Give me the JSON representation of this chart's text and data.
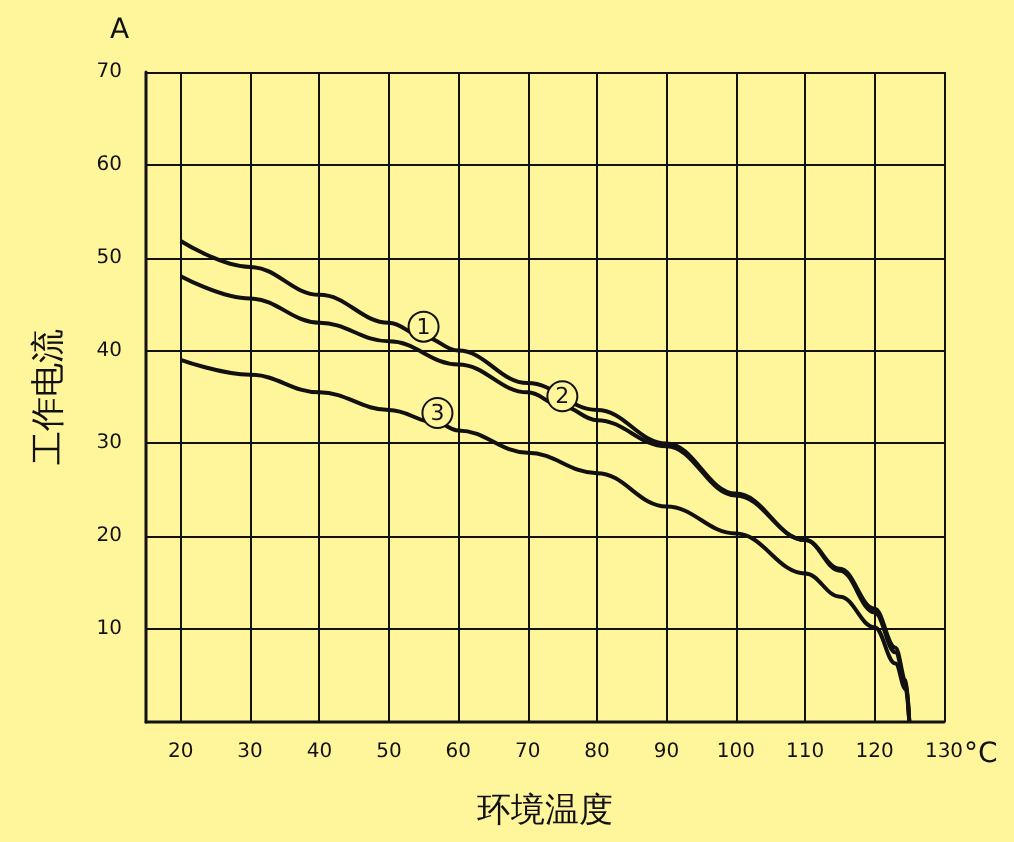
{
  "chart_data": {
    "type": "line",
    "xlabel": "环境温度",
    "ylabel": "工作电流",
    "annotations": [
      "A",
      "°C"
    ],
    "xlim": [
      15,
      130
    ],
    "xticks": [
      20,
      30,
      40,
      50,
      60,
      70,
      80,
      90,
      100,
      110,
      120,
      130
    ],
    "ylim": [
      0,
      70
    ],
    "yticks": [
      10,
      20,
      30,
      40,
      50,
      60,
      70
    ],
    "grid": true,
    "legend": false,
    "marker": "none",
    "line_style": "solid",
    "series": [
      {
        "name": "1",
        "color": "#111111",
        "x": [
          20,
          30,
          40,
          50,
          55,
          60,
          70,
          80,
          90,
          100,
          110,
          115,
          120,
          123,
          124.5,
          125
        ],
        "values": [
          51.8,
          49,
          46,
          43,
          41.5,
          40,
          36.5,
          33.6,
          30,
          24.6,
          19.6,
          16.5,
          12.2,
          8,
          4.5,
          0
        ]
      },
      {
        "name": "2",
        "color": "#111111",
        "x": [
          20,
          30,
          40,
          50,
          60,
          70,
          75,
          80,
          90,
          100,
          110,
          115,
          120,
          123,
          124.5,
          125
        ],
        "values": [
          48,
          45.6,
          43,
          41,
          38.5,
          35.5,
          34,
          32.5,
          29.7,
          24.4,
          19.6,
          16.3,
          11.8,
          7.5,
          4.2,
          0
        ]
      },
      {
        "name": "3",
        "color": "#111111",
        "x": [
          20,
          30,
          40,
          50,
          57,
          60,
          70,
          80,
          90,
          100,
          110,
          115,
          120,
          123,
          124.5,
          125
        ],
        "values": [
          39,
          37.4,
          35.5,
          33.6,
          32.2,
          31.4,
          29,
          26.8,
          23.2,
          20.3,
          16,
          13.5,
          10.2,
          6.3,
          3.5,
          0
        ]
      }
    ]
  }
}
